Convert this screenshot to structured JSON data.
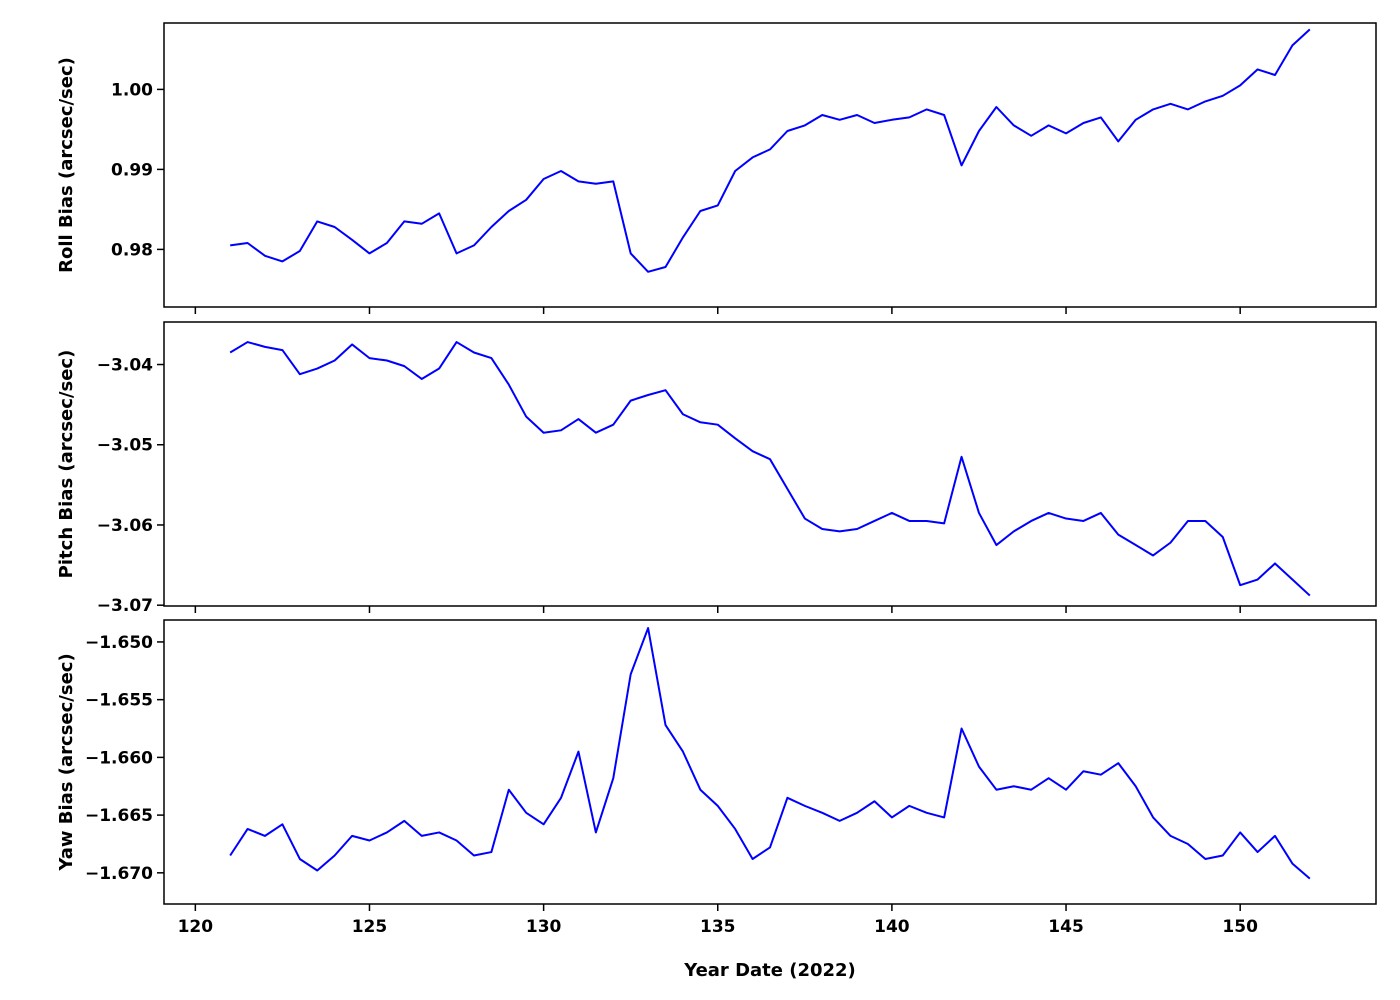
{
  "chart_data": [
    {
      "type": "line",
      "ylabel": "Roll Bias (arcsec/sec)",
      "ylim": [
        0.9728,
        1.0083
      ],
      "yticks": [
        0.98,
        0.99,
        1.0
      ],
      "ytick_labels": [
        "0.98",
        "0.99",
        "1.00"
      ],
      "xlim": [
        119.1,
        153.9
      ],
      "xticks": [
        120,
        125,
        130,
        135,
        140,
        145,
        150
      ],
      "show_xtick_labels": false,
      "grid": false,
      "series": [
        {
          "color": "#0000ff",
          "x": [
            121.0,
            121.5,
            122.0,
            122.5,
            123.0,
            123.5,
            124.0,
            124.5,
            125.0,
            125.5,
            126.0,
            126.5,
            127.0,
            127.5,
            128.0,
            128.5,
            129.0,
            129.5,
            130.0,
            130.5,
            131.0,
            131.5,
            132.0,
            132.5,
            133.0,
            133.5,
            134.0,
            134.5,
            135.0,
            135.5,
            136.0,
            136.5,
            137.0,
            137.5,
            138.0,
            138.5,
            139.0,
            139.5,
            140.0,
            140.5,
            141.0,
            141.5,
            142.0,
            142.5,
            143.0,
            143.5,
            144.0,
            144.5,
            145.0,
            145.5,
            146.0,
            146.5,
            147.0,
            147.5,
            148.0,
            148.5,
            149.0,
            149.5,
            150.0,
            150.5,
            151.0,
            151.5,
            152.0
          ],
          "y": [
            0.9805,
            0.9808,
            0.9792,
            0.9785,
            0.9798,
            0.9835,
            0.9828,
            0.9812,
            0.9795,
            0.9808,
            0.9835,
            0.9832,
            0.9845,
            0.9795,
            0.9805,
            0.9828,
            0.9848,
            0.9862,
            0.9888,
            0.9898,
            0.9885,
            0.9882,
            0.9885,
            0.9795,
            0.9772,
            0.9778,
            0.9815,
            0.9848,
            0.9855,
            0.9898,
            0.9915,
            0.9925,
            0.9948,
            0.9955,
            0.9968,
            0.9962,
            0.9968,
            0.9958,
            0.9962,
            0.9965,
            0.9975,
            0.9968,
            0.9905,
            0.9948,
            0.9978,
            0.9955,
            0.9942,
            0.9955,
            0.9945,
            0.9958,
            0.9965,
            0.9935,
            0.9962,
            0.9975,
            0.9982,
            0.9975,
            0.9985,
            0.9992,
            1.0005,
            1.0025,
            1.0018,
            1.0055,
            1.0075
          ]
        }
      ]
    },
    {
      "type": "line",
      "ylabel": "Pitch Bias (arcsec/sec)",
      "ylim": [
        -3.0701,
        -3.0347
      ],
      "yticks": [
        -3.07,
        -3.06,
        -3.05,
        -3.04
      ],
      "ytick_labels": [
        "−3.07",
        "−3.06",
        "−3.05",
        "−3.04"
      ],
      "xlim": [
        119.1,
        153.9
      ],
      "xticks": [
        120,
        125,
        130,
        135,
        140,
        145,
        150
      ],
      "show_xtick_labels": false,
      "grid": false,
      "series": [
        {
          "color": "#0000ff",
          "x": [
            121.0,
            121.5,
            122.0,
            122.5,
            123.0,
            123.5,
            124.0,
            124.5,
            125.0,
            125.5,
            126.0,
            126.5,
            127.0,
            127.5,
            128.0,
            128.5,
            129.0,
            129.5,
            130.0,
            130.5,
            131.0,
            131.5,
            132.0,
            132.5,
            133.0,
            133.5,
            134.0,
            134.5,
            135.0,
            135.5,
            136.0,
            136.5,
            137.0,
            137.5,
            138.0,
            138.5,
            139.0,
            139.5,
            140.0,
            140.5,
            141.0,
            141.5,
            142.0,
            142.5,
            143.0,
            143.5,
            144.0,
            144.5,
            145.0,
            145.5,
            146.0,
            146.5,
            147.0,
            147.5,
            148.0,
            148.5,
            149.0,
            149.5,
            150.0,
            150.5,
            151.0,
            151.5,
            152.0
          ],
          "y": [
            -3.0385,
            -3.0372,
            -3.0378,
            -3.0382,
            -3.0412,
            -3.0405,
            -3.0395,
            -3.0375,
            -3.0392,
            -3.0395,
            -3.0402,
            -3.0418,
            -3.0405,
            -3.0372,
            -3.0385,
            -3.0392,
            -3.0425,
            -3.0465,
            -3.0485,
            -3.0482,
            -3.0468,
            -3.0485,
            -3.0475,
            -3.0445,
            -3.0438,
            -3.0432,
            -3.0462,
            -3.0472,
            -3.0475,
            -3.0492,
            -3.0508,
            -3.0518,
            -3.0555,
            -3.0592,
            -3.0605,
            -3.0608,
            -3.0605,
            -3.0595,
            -3.0585,
            -3.0595,
            -3.0595,
            -3.0598,
            -3.0515,
            -3.0585,
            -3.0625,
            -3.0608,
            -3.0595,
            -3.0585,
            -3.0592,
            -3.0595,
            -3.0585,
            -3.0612,
            -3.0625,
            -3.0638,
            -3.0622,
            -3.0595,
            -3.0595,
            -3.0615,
            -3.0675,
            -3.0668,
            -3.0648,
            -3.0668,
            -3.0688
          ]
        }
      ]
    },
    {
      "type": "line",
      "ylabel": "Yaw Bias (arcsec/sec)",
      "xlabel": "Year Date (2022)",
      "ylim": [
        -1.6727,
        -1.6481
      ],
      "yticks": [
        -1.67,
        -1.665,
        -1.66,
        -1.655,
        -1.65
      ],
      "ytick_labels": [
        "−1.670",
        "−1.665",
        "−1.660",
        "−1.655",
        "−1.650"
      ],
      "xlim": [
        119.1,
        153.9
      ],
      "xticks": [
        120,
        125,
        130,
        135,
        140,
        145,
        150
      ],
      "xtick_labels": [
        "120",
        "125",
        "130",
        "135",
        "140",
        "145",
        "150"
      ],
      "show_xtick_labels": true,
      "grid": false,
      "series": [
        {
          "color": "#0000ff",
          "x": [
            121.0,
            121.5,
            122.0,
            122.5,
            123.0,
            123.5,
            124.0,
            124.5,
            125.0,
            125.5,
            126.0,
            126.5,
            127.0,
            127.5,
            128.0,
            128.5,
            129.0,
            129.5,
            130.0,
            130.5,
            131.0,
            131.5,
            132.0,
            132.5,
            133.0,
            133.5,
            134.0,
            134.5,
            135.0,
            135.5,
            136.0,
            136.5,
            137.0,
            137.5,
            138.0,
            138.5,
            139.0,
            139.5,
            140.0,
            140.5,
            141.0,
            141.5,
            142.0,
            142.5,
            143.0,
            143.5,
            144.0,
            144.5,
            145.0,
            145.5,
            146.0,
            146.5,
            147.0,
            147.5,
            148.0,
            148.5,
            149.0,
            149.5,
            150.0,
            150.5,
            151.0,
            151.5,
            152.0
          ],
          "y": [
            -1.6685,
            -1.6662,
            -1.6668,
            -1.6658,
            -1.6688,
            -1.6698,
            -1.6685,
            -1.6668,
            -1.6672,
            -1.6665,
            -1.6655,
            -1.6668,
            -1.6665,
            -1.6672,
            -1.6685,
            -1.6682,
            -1.6628,
            -1.6648,
            -1.6658,
            -1.6635,
            -1.6595,
            -1.6665,
            -1.6618,
            -1.6528,
            -1.6488,
            -1.6572,
            -1.6595,
            -1.6628,
            -1.6642,
            -1.6662,
            -1.6688,
            -1.6678,
            -1.6635,
            -1.6642,
            -1.6648,
            -1.6655,
            -1.6648,
            -1.6638,
            -1.6652,
            -1.6642,
            -1.6648,
            -1.6652,
            -1.6575,
            -1.6608,
            -1.6628,
            -1.6625,
            -1.6628,
            -1.6618,
            -1.6628,
            -1.6612,
            -1.6615,
            -1.6605,
            -1.6625,
            -1.6652,
            -1.6668,
            -1.6675,
            -1.6688,
            -1.6685,
            -1.6665,
            -1.6682,
            -1.6668,
            -1.6692,
            -1.6705
          ]
        }
      ]
    }
  ]
}
